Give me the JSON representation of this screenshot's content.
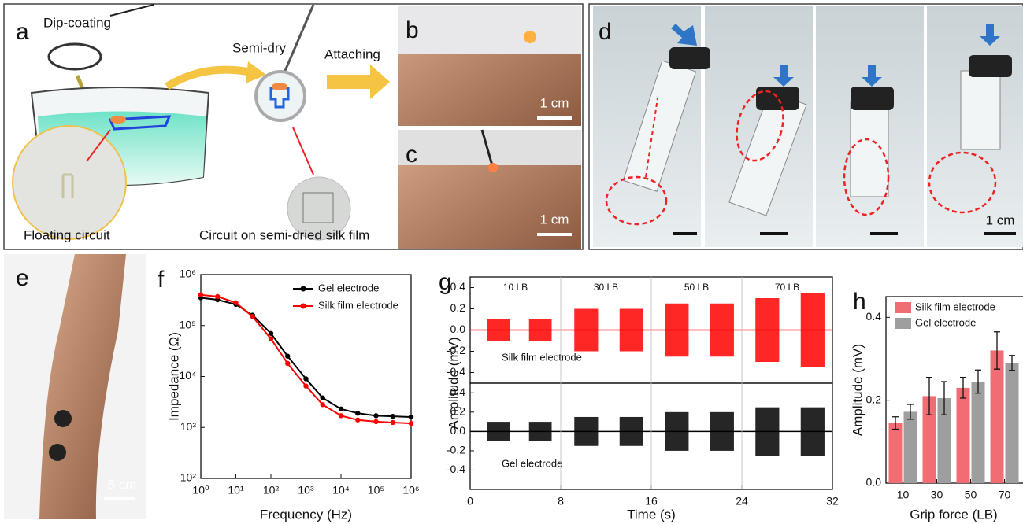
{
  "panel_a": {
    "label": "a",
    "step1": "Dip-coating",
    "step2": "Semi-dry",
    "step3": "Attaching",
    "caption_left": "Floating circuit",
    "caption_right": "Circuit on semi-dried silk film"
  },
  "panel_b": {
    "label": "b",
    "scale": "1 cm"
  },
  "panel_c": {
    "label": "c",
    "scale": "1 cm"
  },
  "panel_d": {
    "label": "d",
    "scale": "1 cm"
  },
  "panel_e": {
    "label": "e",
    "scale": "5 cm"
  },
  "chart_data": [
    {
      "type": "line",
      "label": "f",
      "xlabel": "Frequency (Hz)",
      "ylabel": "Impedance (Ω)",
      "log_x": true,
      "log_y": true,
      "legend": "upper right",
      "xlim": [
        1,
        1000000
      ],
      "ylim": [
        100,
        1000000
      ],
      "xticks": [
        {
          "value": 1,
          "label": "10⁰"
        },
        {
          "value": 10,
          "label": "10¹"
        },
        {
          "value": 100,
          "label": "10²"
        },
        {
          "value": 1000,
          "label": "10³"
        },
        {
          "value": 10000,
          "label": "10⁴"
        },
        {
          "value": 100000,
          "label": "10⁵"
        },
        {
          "value": 1000000,
          "label": "10⁶"
        }
      ],
      "yticks": [
        {
          "value": 100,
          "label": "10²"
        },
        {
          "value": 1000,
          "label": "10³"
        },
        {
          "value": 10000,
          "label": "10⁴"
        },
        {
          "value": 100000,
          "label": "10⁵"
        },
        {
          "value": 1000000,
          "label": "10⁶"
        }
      ],
      "x": [
        1,
        3,
        10,
        30,
        100,
        300,
        1000,
        3000,
        10000,
        30000,
        100000,
        300000,
        1000000
      ],
      "series": [
        {
          "name": "Gel electrode",
          "color": "#000000",
          "values": [
            350000,
            320000,
            260000,
            160000,
            70000,
            25000,
            9000,
            3800,
            2300,
            1900,
            1700,
            1650,
            1600
          ]
        },
        {
          "name": "Silk film electrode",
          "color": "#ff0000",
          "values": [
            400000,
            370000,
            280000,
            150000,
            55000,
            18000,
            6500,
            2800,
            1700,
            1400,
            1300,
            1250,
            1200
          ]
        }
      ]
    },
    {
      "type": "signal",
      "label": "g",
      "xlabel": "Time (s)",
      "ylabel": "Amplitude (mV)",
      "xlim": [
        0,
        32
      ],
      "xticks": [
        0,
        8,
        16,
        24,
        32
      ],
      "annotations": [
        "10 LB",
        "30 LB",
        "50 LB",
        "70 LB"
      ],
      "panels": [
        {
          "name": "Silk film electrode",
          "color": "#ff0000",
          "ylim": [
            -0.5,
            0.5
          ],
          "yticks": [
            -0.4,
            -0.2,
            {
              "value": 0,
              "label": "0.0"
            },
            0.2,
            0.4
          ],
          "start": [
            1.5,
            5.2,
            9.2,
            13.2,
            17.2,
            21.2,
            25.2,
            29.2
          ],
          "end": [
            3.5,
            7.2,
            11.3,
            15.3,
            19.3,
            23.3,
            27.3,
            31.3
          ],
          "values": [
            0.1,
            0.1,
            0.2,
            0.2,
            0.25,
            0.25,
            0.3,
            0.35
          ]
        },
        {
          "name": "Gel electrode",
          "color": "#000000",
          "ylim": [
            -0.6,
            0.5
          ],
          "yticks": [
            -0.4,
            -0.2,
            {
              "value": 0,
              "label": "0.0"
            },
            0.2,
            0.4
          ],
          "start": [
            1.5,
            5.2,
            9.2,
            13.2,
            17.2,
            21.2,
            25.2,
            29.2
          ],
          "end": [
            3.5,
            7.2,
            11.3,
            15.3,
            19.3,
            23.3,
            27.3,
            31.3
          ],
          "values": [
            0.1,
            0.1,
            0.15,
            0.15,
            0.2,
            0.2,
            0.25,
            0.25
          ]
        }
      ]
    },
    {
      "type": "bar",
      "label": "h",
      "xlabel": "Grip force (LB)",
      "ylabel": "Amplitude (mV)",
      "legend": "upper left",
      "categories": [
        "10",
        "30",
        "50",
        "70"
      ],
      "ylim": [
        0,
        0.45
      ],
      "yticks": [
        {
          "value": 0,
          "label": "0.0"
        },
        0.2,
        0.4
      ],
      "series": [
        {
          "name": "Silk film electrode",
          "color": "#f26d73",
          "values": [
            0.145,
            0.21,
            0.23,
            0.32
          ],
          "errors": [
            0.015,
            0.045,
            0.025,
            0.045
          ]
        },
        {
          "name": "Gel electrode",
          "color": "#9e9e9e",
          "values": [
            0.172,
            0.205,
            0.245,
            0.29
          ],
          "errors": [
            0.018,
            0.04,
            0.028,
            0.018
          ]
        }
      ]
    }
  ]
}
